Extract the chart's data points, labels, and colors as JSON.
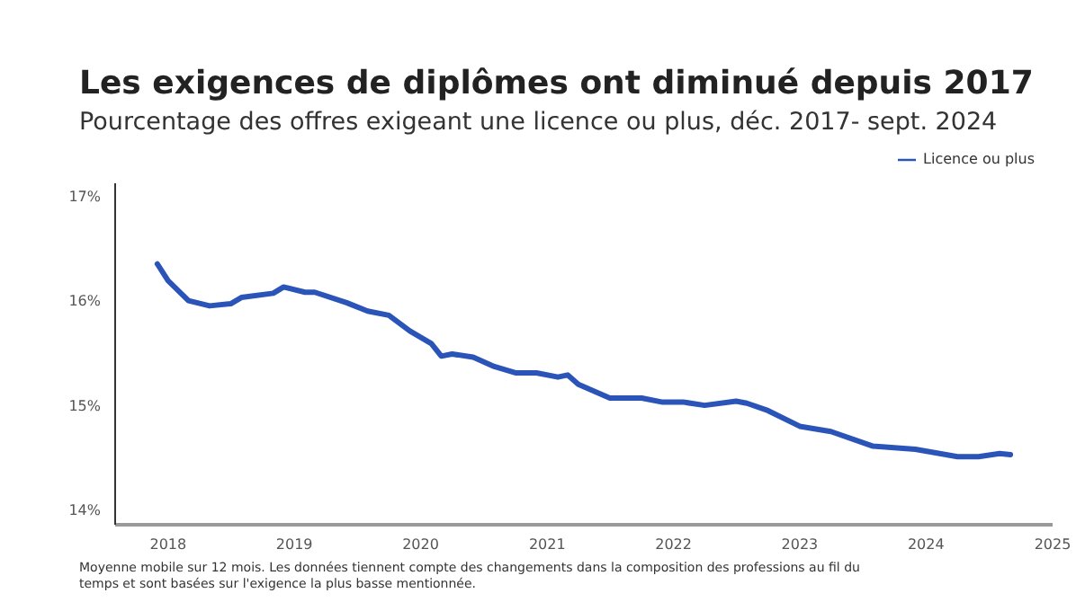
{
  "chart_data": {
    "type": "line",
    "title": "Les exigences de diplômes ont diminué depuis 2017",
    "subtitle": "Pourcentage des offres exigeant une licence ou plus, déc. 2017- sept. 2024",
    "x": [
      "2017-12",
      "2018-01",
      "2018-03",
      "2018-05",
      "2018-07",
      "2018-08",
      "2018-11",
      "2018-12",
      "2019-02",
      "2019-03",
      "2019-06",
      "2019-08",
      "2019-10",
      "2019-12",
      "2020-02",
      "2020-03",
      "2020-04",
      "2020-06",
      "2020-08",
      "2020-10",
      "2020-12",
      "2021-02",
      "2021-03",
      "2021-04",
      "2021-07",
      "2021-10",
      "2021-12",
      "2022-02",
      "2022-04",
      "2022-07",
      "2022-08",
      "2022-10",
      "2023-01",
      "2023-04",
      "2023-08",
      "2023-12",
      "2024-04",
      "2024-06",
      "2024-08",
      "2024-09"
    ],
    "series": [
      {
        "name": "Licence ou plus",
        "color": "#2b54b8",
        "values": [
          16.35,
          16.19,
          16.0,
          15.95,
          15.97,
          16.03,
          16.07,
          16.13,
          16.08,
          16.08,
          15.98,
          15.9,
          15.86,
          15.71,
          15.59,
          15.47,
          15.49,
          15.46,
          15.37,
          15.31,
          15.31,
          15.27,
          15.29,
          15.2,
          15.07,
          15.07,
          15.03,
          15.03,
          15.0,
          15.04,
          15.02,
          14.95,
          14.8,
          14.75,
          14.61,
          14.58,
          14.51,
          14.51,
          14.54,
          14.53
        ]
      }
    ],
    "xlim": [
      "2017-08",
      "2025-01"
    ],
    "xticks": [
      "2018",
      "2019",
      "2020",
      "2021",
      "2022",
      "2023",
      "2024",
      "2025"
    ],
    "ylim": [
      13.86,
      17.12
    ],
    "yticks": [
      {
        "value": 14,
        "label": "14%"
      },
      {
        "value": 15,
        "label": "15%"
      },
      {
        "value": 16,
        "label": "16%"
      },
      {
        "value": 17,
        "label": "17%"
      }
    ],
    "grid": false,
    "legend": "top right",
    "marker": "none",
    "line_style": "solid",
    "annotations": [
      "Moyenne mobile sur 12 mois. Les données tiennent compte des changements dans la composition des professions au fil du temps et sont basées sur l'exigence la plus basse mentionnée."
    ]
  }
}
